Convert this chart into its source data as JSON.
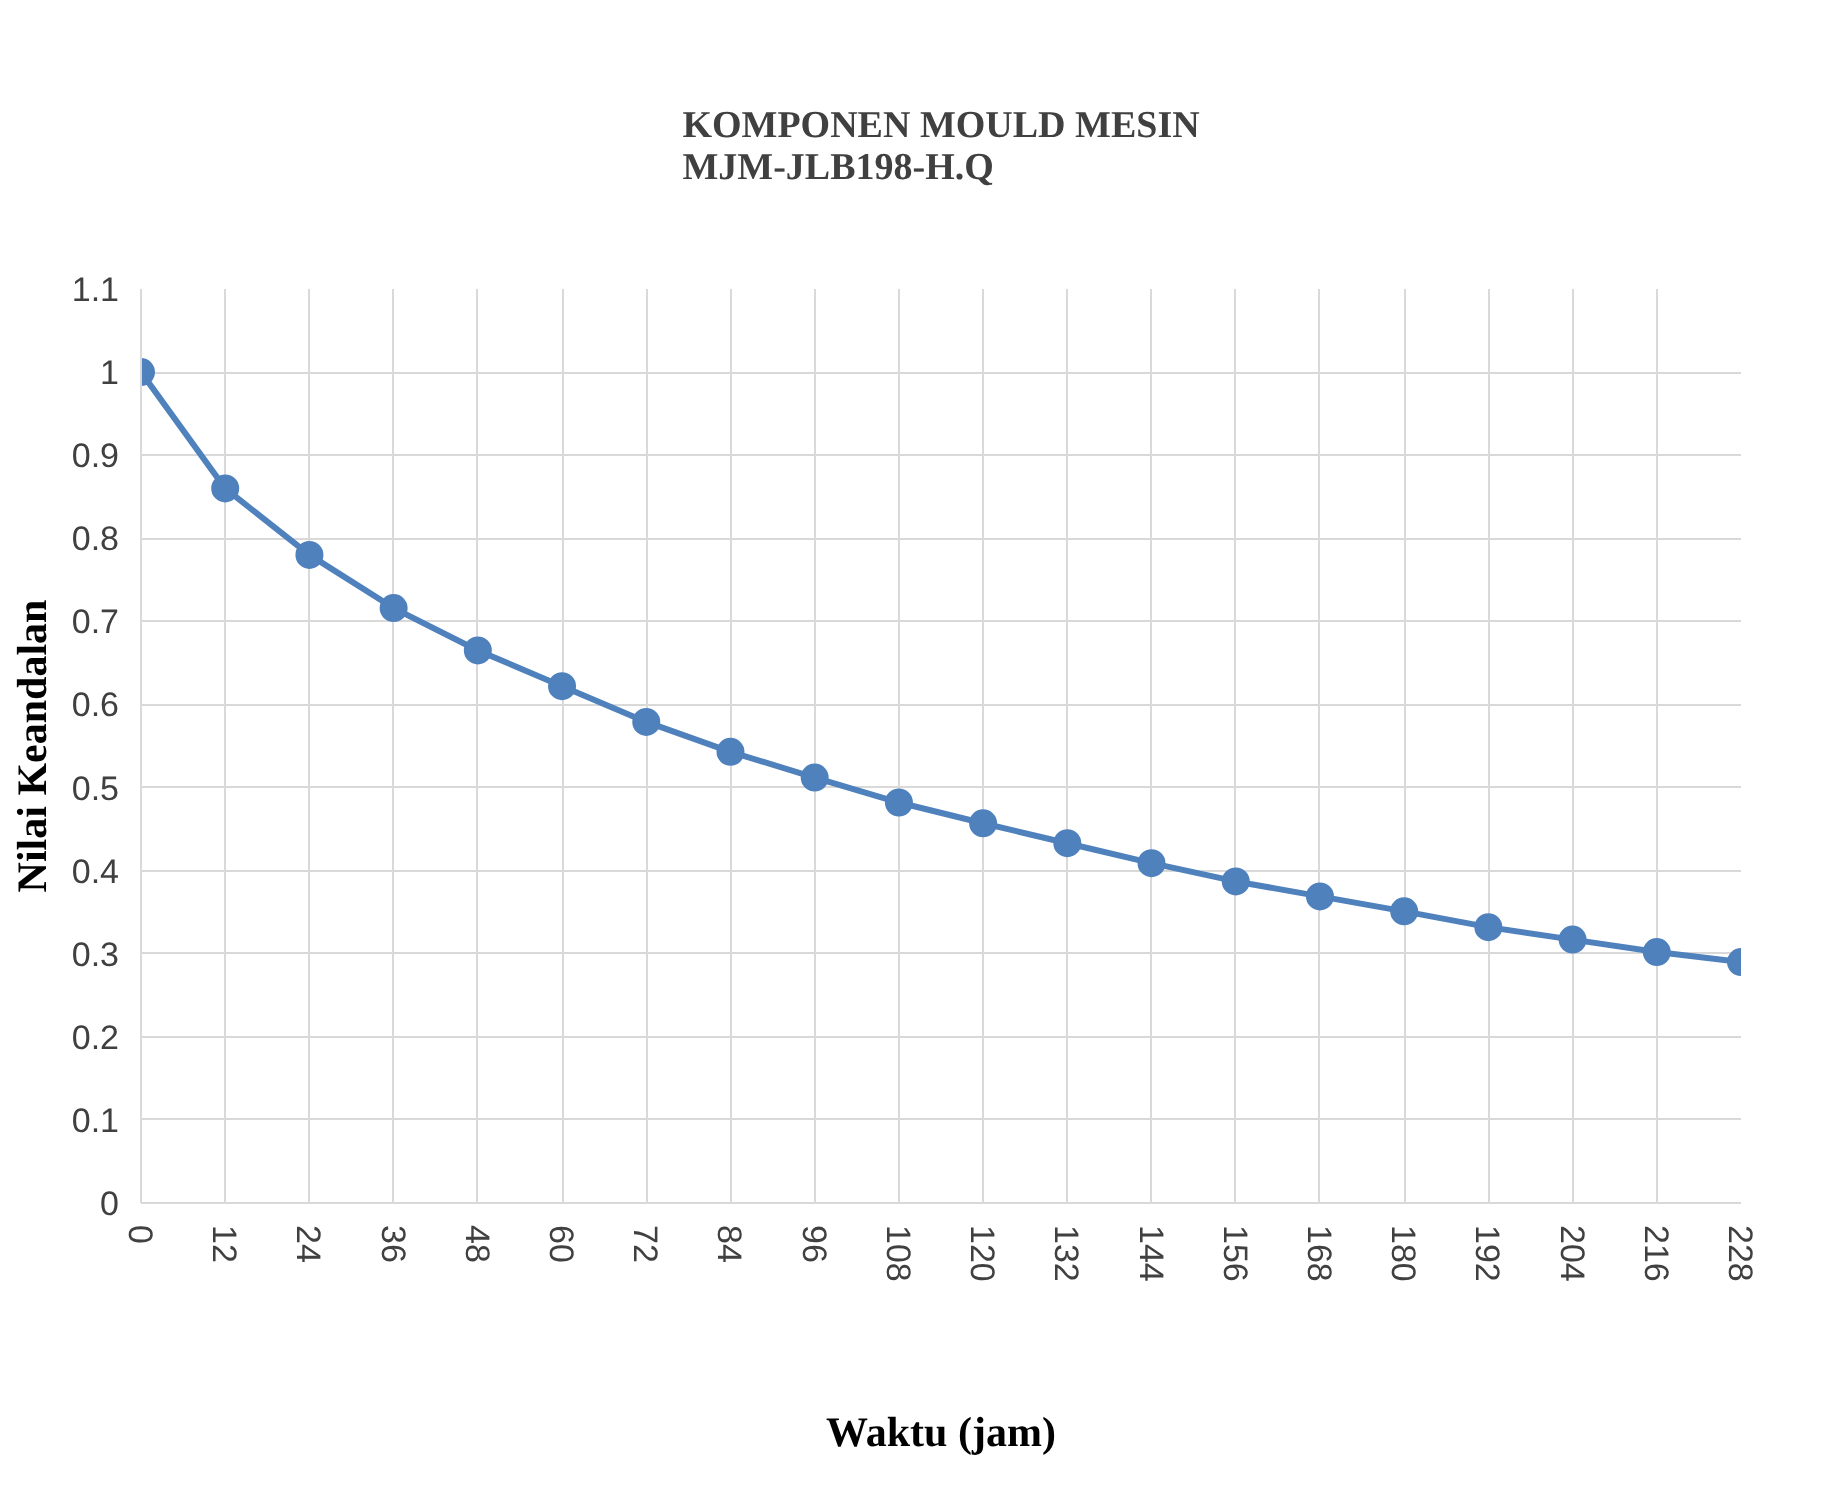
{
  "chart_data": {
    "type": "line",
    "title": "KOMPONEN MOULD MESIN\nMJM-JLB198-H.Q",
    "xlabel": "Waktu (jam)",
    "ylabel": "Nilai Keandalan",
    "x": [
      0,
      12,
      24,
      36,
      48,
      60,
      72,
      84,
      96,
      108,
      120,
      132,
      144,
      156,
      168,
      180,
      192,
      204,
      216,
      228
    ],
    "series": [
      {
        "color": "#4f81bd",
        "values": [
          1.0,
          0.86,
          0.78,
          0.716,
          0.665,
          0.622,
          0.579,
          0.543,
          0.512,
          0.482,
          0.457,
          0.433,
          0.409,
          0.387,
          0.369,
          0.351,
          0.332,
          0.317,
          0.302,
          0.29
        ]
      }
    ],
    "xlim": [
      0,
      228
    ],
    "xticks": [
      0,
      12,
      24,
      36,
      48,
      60,
      72,
      84,
      96,
      108,
      120,
      132,
      144,
      156,
      168,
      180,
      192,
      204,
      216,
      228
    ],
    "ylim": [
      0,
      1.1
    ],
    "yticks": [
      0,
      {
        "value": 0.1,
        "label": "0.1"
      },
      {
        "value": 0.2,
        "label": "0.2"
      },
      {
        "value": 0.3,
        "label": "0.3"
      },
      {
        "value": 0.4,
        "label": "0.4"
      },
      {
        "value": 0.5,
        "label": "0.5"
      },
      {
        "value": 0.6,
        "label": "0.6"
      },
      {
        "value": 0.7,
        "label": "0.7"
      },
      {
        "value": 0.8,
        "label": "0.8"
      },
      {
        "value": 0.9,
        "label": "0.9"
      },
      1,
      {
        "value": 1.1,
        "label": "1.1"
      }
    ],
    "grid": true,
    "marker": "circle",
    "line_style": "solid"
  }
}
